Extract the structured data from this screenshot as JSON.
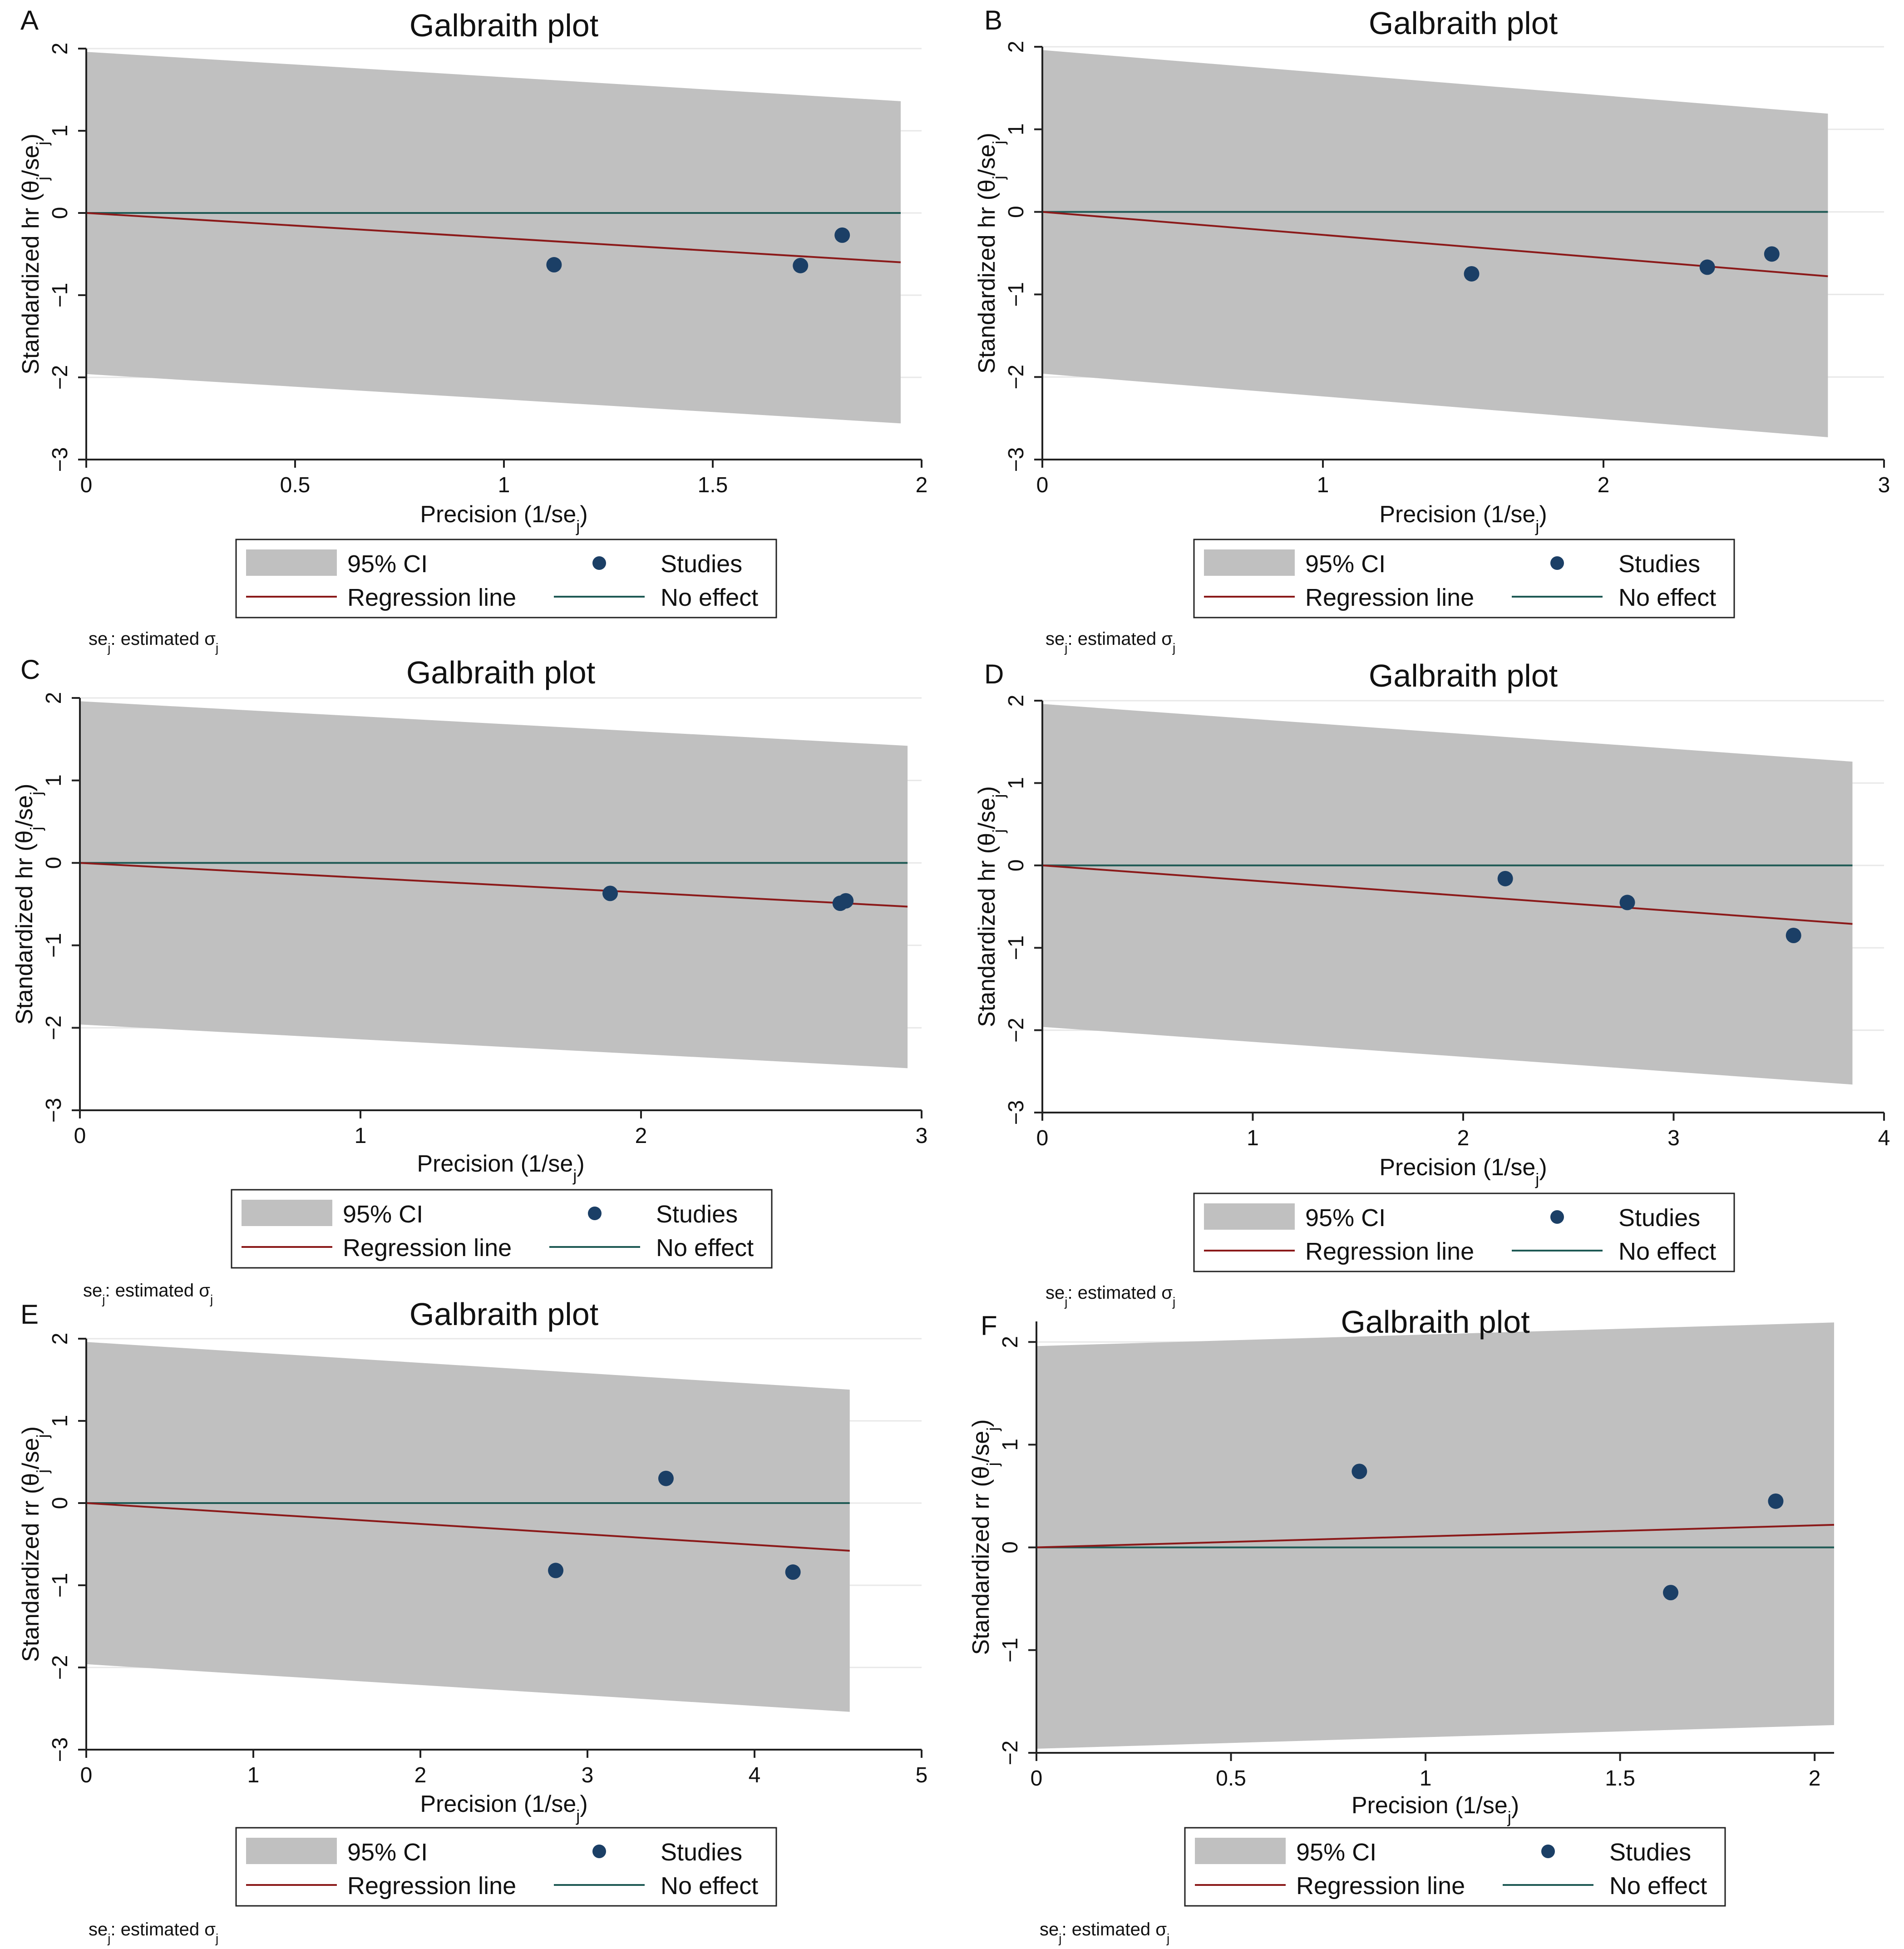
{
  "colors": {
    "band": "#c0c0c0",
    "regression": "#8b1a1a",
    "no_effect": "#1f5a55",
    "point": "#1b3f66",
    "gridline": "#e8e8e8",
    "axis": "#222222",
    "legend_border": "#222222"
  },
  "chart_data": [
    {
      "panel": "A",
      "type": "scatter",
      "title": "Galbraith plot",
      "xlabel": "Precision (1/se",
      "ylabel": "Standardized hr  (θ",
      "xlim": [
        0,
        2
      ],
      "ylim": [
        -3,
        2
      ],
      "xticks": [
        0,
        0.5,
        1,
        1.5,
        2
      ],
      "xtick_labels": [
        "0",
        "0.5",
        "1",
        "1.5",
        "2"
      ],
      "yticks": [
        -3,
        -2,
        -1,
        0,
        1,
        2
      ],
      "ytick_labels": [
        "−3",
        "−2",
        "−1",
        "0",
        "1",
        "2"
      ],
      "band_x": [
        0,
        1.95
      ],
      "band_upper": [
        1.96,
        1.36
      ],
      "band_lower": [
        -1.96,
        -2.56
      ],
      "regression": {
        "x": [
          0,
          1.95
        ],
        "y": [
          0,
          -0.6
        ]
      },
      "no_effect": 0,
      "points": [
        {
          "x": 1.12,
          "y": -0.63
        },
        {
          "x": 1.71,
          "y": -0.64
        },
        {
          "x": 1.81,
          "y": -0.27
        }
      ],
      "legend": {
        "ci": "95% CI",
        "studies": "Studies",
        "regression": "Regression line",
        "no_effect": "No effect"
      },
      "note": "se : estimated σ"
    },
    {
      "panel": "B",
      "type": "scatter",
      "title": "Galbraith plot",
      "xlabel": "Precision (1/se",
      "ylabel": "Standardized hr  (θ",
      "xlim": [
        0,
        3
      ],
      "ylim": [
        -3,
        2
      ],
      "xticks": [
        0,
        1,
        2,
        3
      ],
      "xtick_labels": [
        "0",
        "1",
        "2",
        "3"
      ],
      "yticks": [
        -3,
        -2,
        -1,
        0,
        1,
        2
      ],
      "ytick_labels": [
        "−3",
        "−2",
        "−1",
        "0",
        "1",
        "2"
      ],
      "band_x": [
        0,
        2.8
      ],
      "band_upper": [
        1.96,
        1.19
      ],
      "band_lower": [
        -1.96,
        -2.73
      ],
      "regression": {
        "x": [
          0,
          2.8
        ],
        "y": [
          0,
          -0.78
        ]
      },
      "no_effect": 0,
      "points": [
        {
          "x": 1.53,
          "y": -0.75
        },
        {
          "x": 2.37,
          "y": -0.67
        },
        {
          "x": 2.6,
          "y": -0.51
        }
      ],
      "legend": {
        "ci": "95% CI",
        "studies": "Studies",
        "regression": "Regression line",
        "no_effect": "No effect"
      },
      "note": "se : estimated σ"
    },
    {
      "panel": "C",
      "type": "scatter",
      "title": "Galbraith plot",
      "xlabel": "Precision (1/se",
      "ylabel": "Standardized hr  (θ",
      "xlim": [
        0,
        3
      ],
      "ylim": [
        -3,
        2
      ],
      "xticks": [
        0,
        1,
        2,
        3
      ],
      "xtick_labels": [
        "0",
        "1",
        "2",
        "3"
      ],
      "yticks": [
        -3,
        -2,
        -1,
        0,
        1,
        2
      ],
      "ytick_labels": [
        "−3",
        "−2",
        "−1",
        "0",
        "1",
        "2"
      ],
      "band_x": [
        0,
        2.95
      ],
      "band_upper": [
        1.96,
        1.42
      ],
      "band_lower": [
        -1.96,
        -2.49
      ],
      "regression": {
        "x": [
          0,
          2.95
        ],
        "y": [
          0,
          -0.53
        ]
      },
      "no_effect": 0,
      "points": [
        {
          "x": 1.89,
          "y": -0.37
        },
        {
          "x": 2.71,
          "y": -0.49
        },
        {
          "x": 2.73,
          "y": -0.46
        }
      ],
      "legend": {
        "ci": "95% CI",
        "studies": "Studies",
        "regression": "Regression line",
        "no_effect": "No effect"
      },
      "note": "se : estimated σ"
    },
    {
      "panel": "D",
      "type": "scatter",
      "title": "Galbraith plot",
      "xlabel": "Precision (1/se",
      "ylabel": "Standardized hr  (θ",
      "xlim": [
        0,
        4
      ],
      "ylim": [
        -3,
        2
      ],
      "xticks": [
        0,
        1,
        2,
        3,
        4
      ],
      "xtick_labels": [
        "0",
        "1",
        "2",
        "3",
        "4"
      ],
      "yticks": [
        -3,
        -2,
        -1,
        0,
        1,
        2
      ],
      "ytick_labels": [
        "−3",
        "−2",
        "−1",
        "0",
        "1",
        "2"
      ],
      "band_x": [
        0,
        3.85
      ],
      "band_upper": [
        1.96,
        1.26
      ],
      "band_lower": [
        -1.96,
        -2.66
      ],
      "regression": {
        "x": [
          0,
          3.85
        ],
        "y": [
          0,
          -0.71
        ]
      },
      "no_effect": 0,
      "points": [
        {
          "x": 2.2,
          "y": -0.16
        },
        {
          "x": 2.78,
          "y": -0.45
        },
        {
          "x": 3.57,
          "y": -0.85
        }
      ],
      "legend": {
        "ci": "95% CI",
        "studies": "Studies",
        "regression": "Regression line",
        "no_effect": "No effect"
      },
      "note": "se : estimated σ"
    },
    {
      "panel": "E",
      "type": "scatter",
      "title": "Galbraith plot",
      "xlabel": "Precision (1/se",
      "ylabel": "Standardized rr  (θ",
      "xlim": [
        0,
        5
      ],
      "ylim": [
        -3,
        2
      ],
      "xticks": [
        0,
        1,
        2,
        3,
        4,
        5
      ],
      "xtick_labels": [
        "0",
        "1",
        "2",
        "3",
        "4",
        "5"
      ],
      "yticks": [
        -3,
        -2,
        -1,
        0,
        1,
        2
      ],
      "ytick_labels": [
        "−3",
        "−2",
        "−1",
        "0",
        "1",
        "2"
      ],
      "band_x": [
        0,
        4.57
      ],
      "band_upper": [
        1.96,
        1.38
      ],
      "band_lower": [
        -1.96,
        -2.54
      ],
      "regression": {
        "x": [
          0,
          4.57
        ],
        "y": [
          0,
          -0.58
        ]
      },
      "no_effect": 0,
      "points": [
        {
          "x": 2.81,
          "y": -0.82
        },
        {
          "x": 3.47,
          "y": 0.3
        },
        {
          "x": 4.23,
          "y": -0.84
        }
      ],
      "legend": {
        "ci": "95% CI",
        "studies": "Studies",
        "regression": "Regression line",
        "no_effect": "No effect"
      },
      "note": "se : estimated σ"
    },
    {
      "panel": "F",
      "type": "scatter",
      "title": "Galbraith plot",
      "xlabel": "Precision (1/se",
      "ylabel": "Standardized rr  (θ",
      "xlim": [
        0,
        2.05
      ],
      "ylim": [
        -2,
        2.2
      ],
      "xticks": [
        0,
        0.5,
        1,
        1.5,
        2
      ],
      "xtick_labels": [
        "0",
        "0.5",
        "1",
        "1.5",
        "2"
      ],
      "yticks": [
        -2,
        -1,
        0,
        1,
        2
      ],
      "ytick_labels": [
        "−2",
        "−1",
        "0",
        "1",
        "2"
      ],
      "band_x": [
        0,
        2.05
      ],
      "band_upper": [
        1.96,
        2.19
      ],
      "band_lower": [
        -1.96,
        -1.73
      ],
      "regression": {
        "x": [
          0,
          2.05
        ],
        "y": [
          0,
          0.22
        ]
      },
      "no_effect": 0,
      "points": [
        {
          "x": 0.83,
          "y": 0.74
        },
        {
          "x": 1.63,
          "y": -0.44
        },
        {
          "x": 1.9,
          "y": 0.45
        }
      ],
      "legend": {
        "ci": "95% CI",
        "studies": "Studies",
        "regression": "Regression line",
        "no_effect": "No effect"
      },
      "note": "se : estimated σ"
    }
  ]
}
